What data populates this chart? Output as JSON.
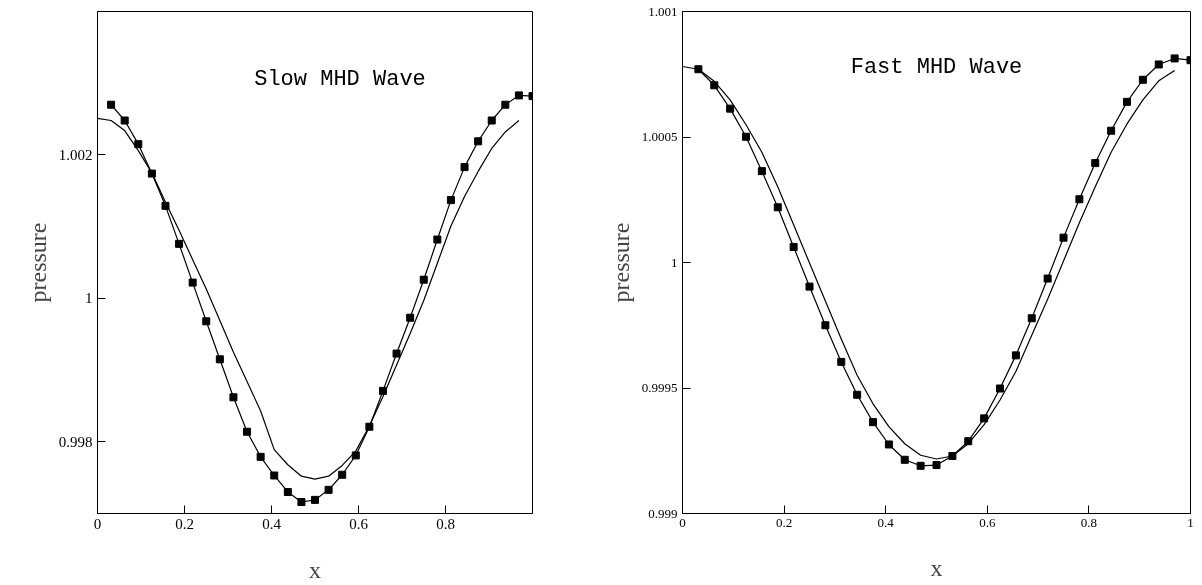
{
  "chart_data": [
    {
      "type": "line",
      "title": "Slow MHD Wave",
      "xlabel": "x",
      "ylabel": "pressure",
      "xlim": [
        0,
        1
      ],
      "ylim": [
        0.997,
        1.004
      ],
      "xticks": [
        0,
        0.2,
        0.4,
        0.6,
        0.8
      ],
      "yticks": [
        0.998,
        1,
        1.002
      ],
      "grid": false,
      "series": [
        {
          "color": "#000000",
          "marker": "square",
          "x": [
            0.03125,
            0.0625,
            0.09375,
            0.125,
            0.15625,
            0.1875,
            0.21875,
            0.25,
            0.28125,
            0.3125,
            0.34375,
            0.375,
            0.40625,
            0.4375,
            0.46875,
            0.5,
            0.53125,
            0.5625,
            0.59375,
            0.625,
            0.65625,
            0.6875,
            0.71875,
            0.75,
            0.78125,
            0.8125,
            0.84375,
            0.875,
            0.90625,
            0.9375,
            0.96875,
            1.0
          ],
          "values": [
            1.0027,
            1.00248,
            1.00215,
            1.00174,
            1.00129,
            1.00076,
            1.00022,
            0.99968,
            0.99915,
            0.99862,
            0.99814,
            0.99779,
            0.99753,
            0.9973,
            0.99716,
            0.99719,
            0.99733,
            0.99754,
            0.99781,
            0.99821,
            0.99871,
            0.99923,
            0.99973,
            1.00026,
            1.00082,
            1.00137,
            1.00183,
            1.00219,
            1.00248,
            1.0027,
            1.00283,
            1.00282
          ]
        },
        {
          "color": "#000000",
          "marker": "none",
          "x": [
            0,
            0.03125,
            0.0625,
            0.09375,
            0.125,
            0.15625,
            0.1875,
            0.21875,
            0.25,
            0.28125,
            0.3125,
            0.34375,
            0.375,
            0.40625,
            0.4375,
            0.46875,
            0.5,
            0.53125,
            0.5625,
            0.59375,
            0.625,
            0.65625,
            0.6875,
            0.71875,
            0.75,
            0.78125,
            0.8125,
            0.84375,
            0.875,
            0.90625,
            0.9375,
            0.96875
          ],
          "values": [
            1.00251,
            1.00248,
            1.00234,
            1.00206,
            1.00175,
            1.00134,
            1.00095,
            1.00054,
            1.00013,
            0.99969,
            0.99925,
            0.99884,
            0.99843,
            0.99789,
            0.99768,
            0.99752,
            0.99748,
            0.99752,
            0.99767,
            0.99787,
            0.99822,
            0.99863,
            0.99907,
            0.99951,
            0.99997,
            1.00049,
            1.00101,
            1.00142,
            1.00177,
            1.00209,
            1.00232,
            1.00248
          ]
        }
      ]
    },
    {
      "type": "line",
      "title": "Fast MHD Wave",
      "xlabel": "x",
      "ylabel": "pressure",
      "xlim": [
        0,
        1
      ],
      "ylim": [
        0.999,
        1.001
      ],
      "xticks": [
        0,
        0.2,
        0.4,
        0.6,
        0.8,
        1
      ],
      "yticks": [
        0.999,
        0.9995,
        1,
        1.0005,
        1.001
      ],
      "grid": false,
      "series": [
        {
          "color": "#000000",
          "marker": "square",
          "x": [
            0.03125,
            0.0625,
            0.09375,
            0.125,
            0.15625,
            0.1875,
            0.21875,
            0.25,
            0.28125,
            0.3125,
            0.34375,
            0.375,
            0.40625,
            0.4375,
            0.46875,
            0.5,
            0.53125,
            0.5625,
            0.59375,
            0.625,
            0.65625,
            0.6875,
            0.71875,
            0.75,
            0.78125,
            0.8125,
            0.84375,
            0.875,
            0.90625,
            0.9375,
            0.96875,
            1.0
          ],
          "values": [
            1.00077,
            1.000706,
            1.000613,
            1.000501,
            1.000364,
            1.00022,
            1.000062,
            0.999904,
            0.99975,
            0.999604,
            0.999473,
            0.999364,
            0.999275,
            0.999214,
            0.99919,
            0.999193,
            0.999229,
            0.999288,
            0.999379,
            0.999498,
            0.99963,
            0.999778,
            0.999936,
            1.000099,
            1.000252,
            1.000396,
            1.000525,
            1.00064,
            1.000728,
            1.000789,
            1.000813,
            1.000806
          ]
        },
        {
          "color": "#000000",
          "marker": "none",
          "x": [
            0,
            0.03125,
            0.0625,
            0.09375,
            0.125,
            0.15625,
            0.1875,
            0.21875,
            0.25,
            0.28125,
            0.3125,
            0.34375,
            0.375,
            0.40625,
            0.4375,
            0.46875,
            0.5,
            0.53125,
            0.5625,
            0.59375,
            0.625,
            0.65625,
            0.6875,
            0.71875,
            0.75,
            0.78125,
            0.8125,
            0.84375,
            0.875,
            0.90625,
            0.9375,
            0.96875
          ],
          "values": [
            1.000781,
            1.00077,
            1.000722,
            1.000648,
            1.000549,
            1.000439,
            1.000302,
            1.00015,
            0.999998,
            0.999847,
            0.999695,
            0.999551,
            0.999437,
            0.999346,
            0.999278,
            0.999232,
            0.999217,
            0.999229,
            0.999278,
            0.999354,
            0.999452,
            0.999566,
            0.99971,
            0.999854,
            1.000006,
            1.000158,
            1.000302,
            1.000439,
            1.000552,
            1.000648,
            1.000724,
            1.000765
          ]
        }
      ]
    }
  ]
}
